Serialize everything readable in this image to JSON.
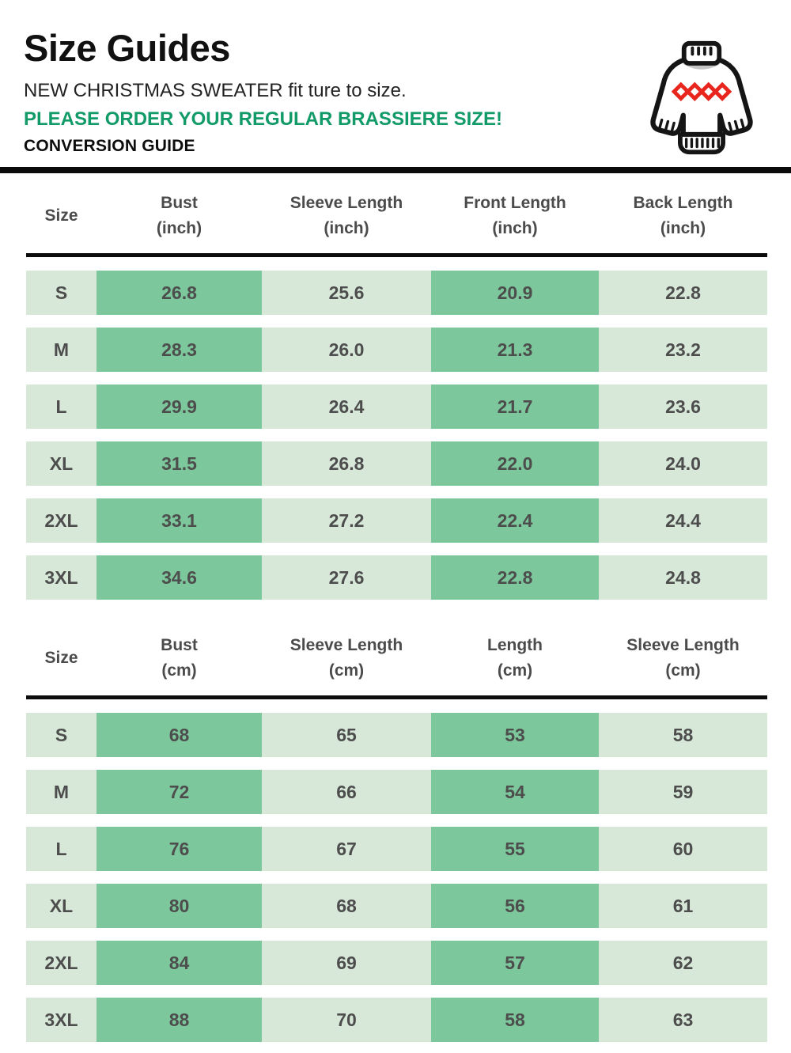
{
  "header": {
    "title": "Size Guides",
    "subtitle": "NEW CHRISTMAS SWEATER fit ture to size.",
    "notice": "PLEASE ORDER YOUR REGULAR BRASSIERE SIZE!",
    "conversion_label": "CONVERSION GUIDE",
    "icon": "christmas-sweater-icon"
  },
  "colors": {
    "notice_green": "#129b68",
    "cell_dark_green": "#7cc79b",
    "cell_light_green": "#d7e8d9",
    "table_text_gray": "#4d4d4d",
    "divider_black": "#0a0a0a",
    "diamond_red": "#e8261d"
  },
  "tables": [
    {
      "unit": "inch",
      "columns": [
        {
          "line1": "Size",
          "line2": ""
        },
        {
          "line1": "Bust",
          "line2": "(inch)"
        },
        {
          "line1": "Sleeve Length",
          "line2": "(inch)"
        },
        {
          "line1": "Front Length",
          "line2": "(inch)"
        },
        {
          "line1": "Back Length",
          "line2": "(inch)"
        }
      ],
      "rows": [
        {
          "size": "S",
          "values": [
            "26.8",
            "25.6",
            "20.9",
            "22.8"
          ]
        },
        {
          "size": "M",
          "values": [
            "28.3",
            "26.0",
            "21.3",
            "23.2"
          ]
        },
        {
          "size": "L",
          "values": [
            "29.9",
            "26.4",
            "21.7",
            "23.6"
          ]
        },
        {
          "size": "XL",
          "values": [
            "31.5",
            "26.8",
            "22.0",
            "24.0"
          ]
        },
        {
          "size": "2XL",
          "values": [
            "33.1",
            "27.2",
            "22.4",
            "24.4"
          ]
        },
        {
          "size": "3XL",
          "values": [
            "34.6",
            "27.6",
            "22.8",
            "24.8"
          ]
        }
      ]
    },
    {
      "unit": "cm",
      "columns": [
        {
          "line1": "Size",
          "line2": ""
        },
        {
          "line1": "Bust",
          "line2": "(cm)"
        },
        {
          "line1": "Sleeve Length",
          "line2": "(cm)"
        },
        {
          "line1": "Length",
          "line2": "(cm)"
        },
        {
          "line1": "Sleeve Length",
          "line2": "(cm)"
        }
      ],
      "rows": [
        {
          "size": "S",
          "values": [
            "68",
            "65",
            "53",
            "58"
          ]
        },
        {
          "size": "M",
          "values": [
            "72",
            "66",
            "54",
            "59"
          ]
        },
        {
          "size": "L",
          "values": [
            "76",
            "67",
            "55",
            "60"
          ]
        },
        {
          "size": "XL",
          "values": [
            "80",
            "68",
            "56",
            "61"
          ]
        },
        {
          "size": "2XL",
          "values": [
            "84",
            "69",
            "57",
            "62"
          ]
        },
        {
          "size": "3XL",
          "values": [
            "88",
            "70",
            "58",
            "63"
          ]
        }
      ]
    }
  ]
}
